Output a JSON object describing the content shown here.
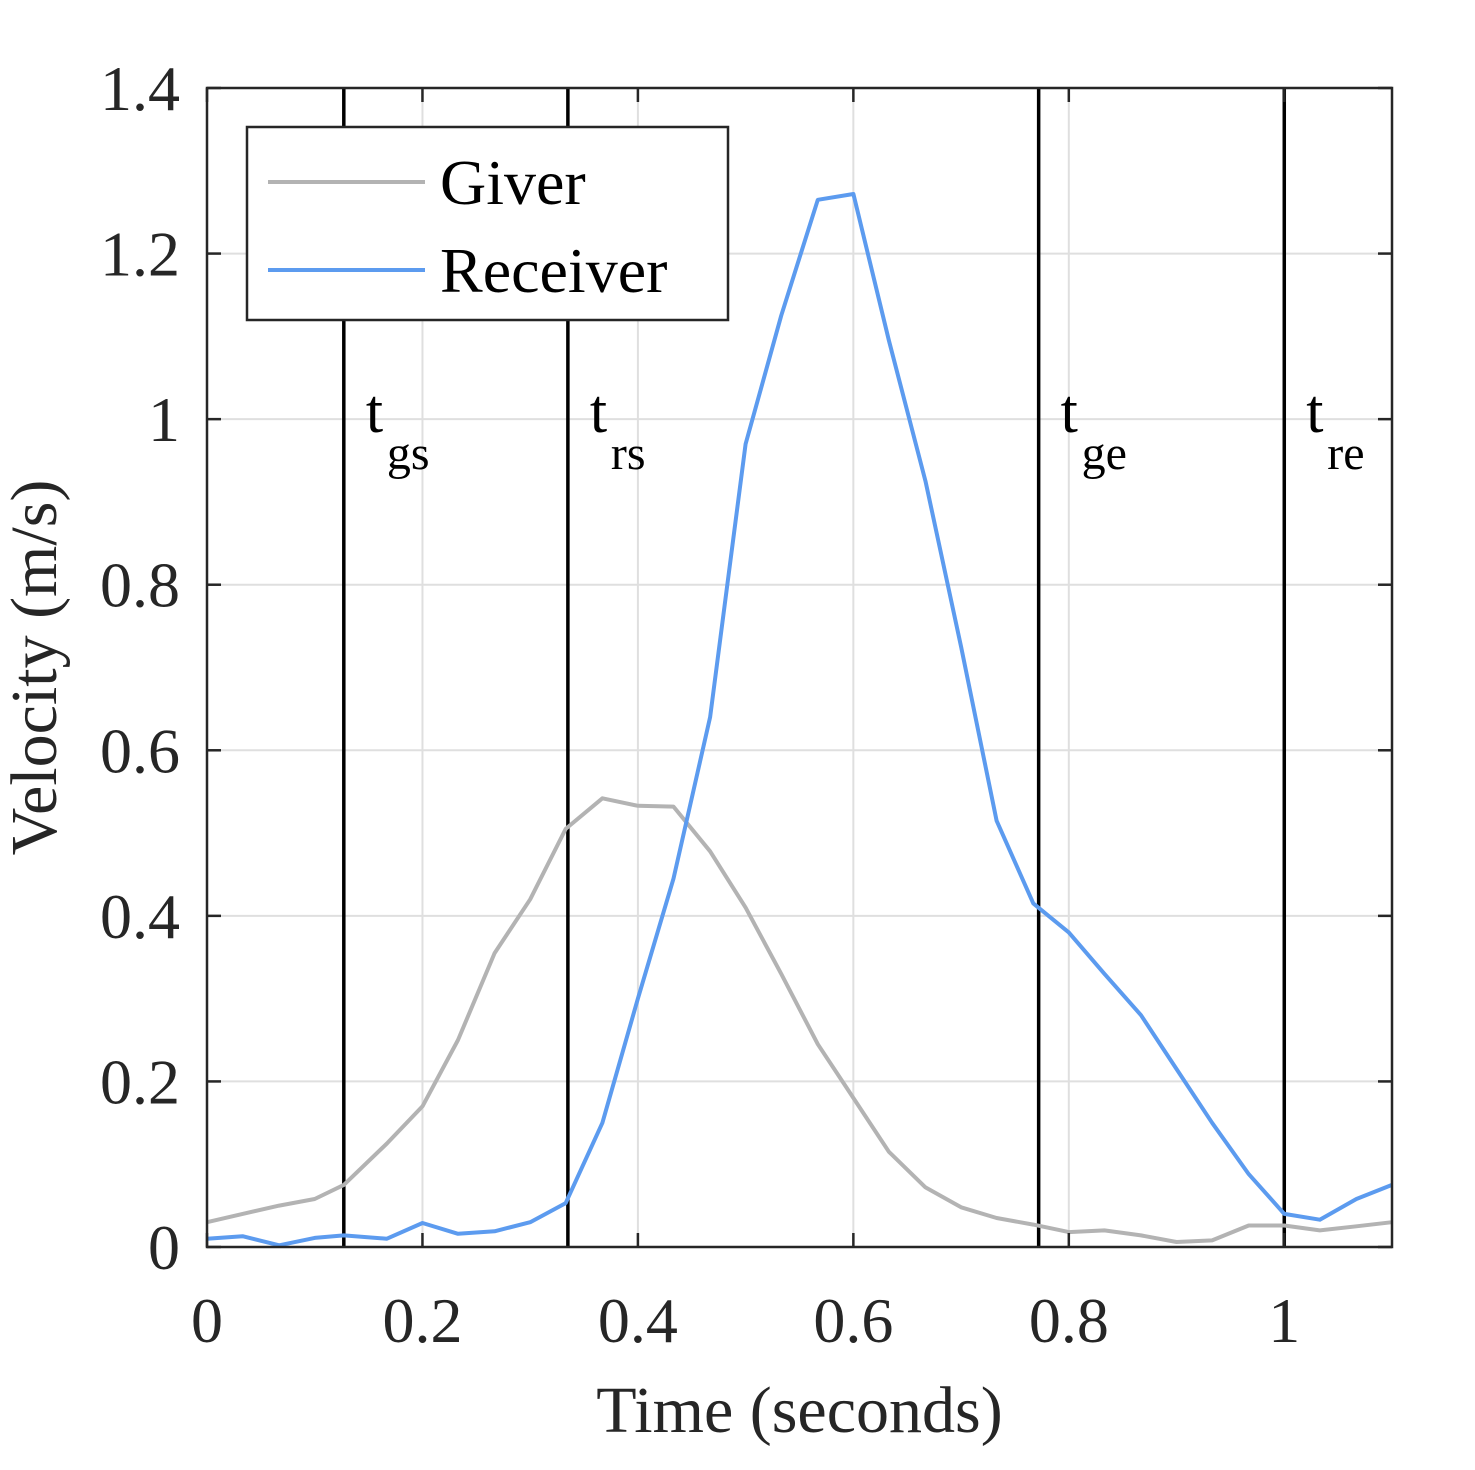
{
  "chart_data": {
    "type": "line",
    "xlabel": "Time (seconds)",
    "ylabel": "Velocity (m/s)",
    "xlim": [
      0,
      1.1
    ],
    "ylim": [
      0,
      1.4
    ],
    "xticks": [
      0,
      0.2,
      0.4,
      0.6,
      0.8,
      1
    ],
    "xtick_labels": [
      "0",
      "0.2",
      "0.4",
      "0.6",
      "0.8",
      "1"
    ],
    "yticks": [
      0,
      0.2,
      0.4,
      0.6,
      0.8,
      1,
      1.2,
      1.4
    ],
    "ytick_labels": [
      "0",
      "0.2",
      "0.4",
      "0.6",
      "0.8",
      "1",
      "1.2",
      "1.4"
    ],
    "grid": true,
    "legend_position": "top-left",
    "series": [
      {
        "name": "Giver",
        "color": "#b3b3b3",
        "x": [
          0,
          0.033,
          0.067,
          0.1,
          0.127,
          0.167,
          0.2,
          0.233,
          0.267,
          0.3,
          0.333,
          0.367,
          0.4,
          0.433,
          0.467,
          0.5,
          0.533,
          0.567,
          0.6,
          0.633,
          0.667,
          0.7,
          0.733,
          0.767,
          0.8,
          0.833,
          0.867,
          0.9,
          0.933,
          0.967,
          1.0,
          1.033,
          1.067,
          1.1
        ],
        "y": [
          0.03,
          0.04,
          0.05,
          0.058,
          0.075,
          0.125,
          0.17,
          0.25,
          0.355,
          0.42,
          0.505,
          0.542,
          0.533,
          0.532,
          0.478,
          0.41,
          0.33,
          0.245,
          0.18,
          0.115,
          0.072,
          0.048,
          0.035,
          0.027,
          0.018,
          0.02,
          0.014,
          0.006,
          0.008,
          0.026,
          0.026,
          0.02,
          0.025,
          0.03
        ]
      },
      {
        "name": "Receiver",
        "color": "#5c9bef",
        "x": [
          0,
          0.033,
          0.067,
          0.1,
          0.127,
          0.167,
          0.2,
          0.233,
          0.267,
          0.3,
          0.333,
          0.367,
          0.4,
          0.433,
          0.467,
          0.5,
          0.533,
          0.567,
          0.6,
          0.633,
          0.667,
          0.7,
          0.733,
          0.767,
          0.8,
          0.833,
          0.867,
          0.9,
          0.933,
          0.967,
          1.0,
          1.033,
          1.067,
          1.1
        ],
        "y": [
          0.01,
          0.013,
          0.002,
          0.011,
          0.014,
          0.01,
          0.029,
          0.016,
          0.019,
          0.03,
          0.053,
          0.15,
          0.3,
          0.445,
          0.64,
          0.97,
          1.125,
          1.265,
          1.272,
          1.095,
          0.925,
          0.725,
          0.515,
          0.415,
          0.38,
          0.33,
          0.28,
          0.215,
          0.15,
          0.088,
          0.04,
          0.033,
          0.058,
          0.075
        ]
      }
    ],
    "vertical_markers": [
      {
        "x": 0.127,
        "label": "t",
        "subscript": "gs"
      },
      {
        "x": 0.335,
        "label": "t",
        "subscript": "rs"
      },
      {
        "x": 0.772,
        "label": "t",
        "subscript": "ge"
      },
      {
        "x": 1.0,
        "label": "t",
        "subscript": "re"
      }
    ],
    "marker_line_color": "#000000",
    "grid_color": "#dfdfdf",
    "axis_color": "#262626"
  }
}
